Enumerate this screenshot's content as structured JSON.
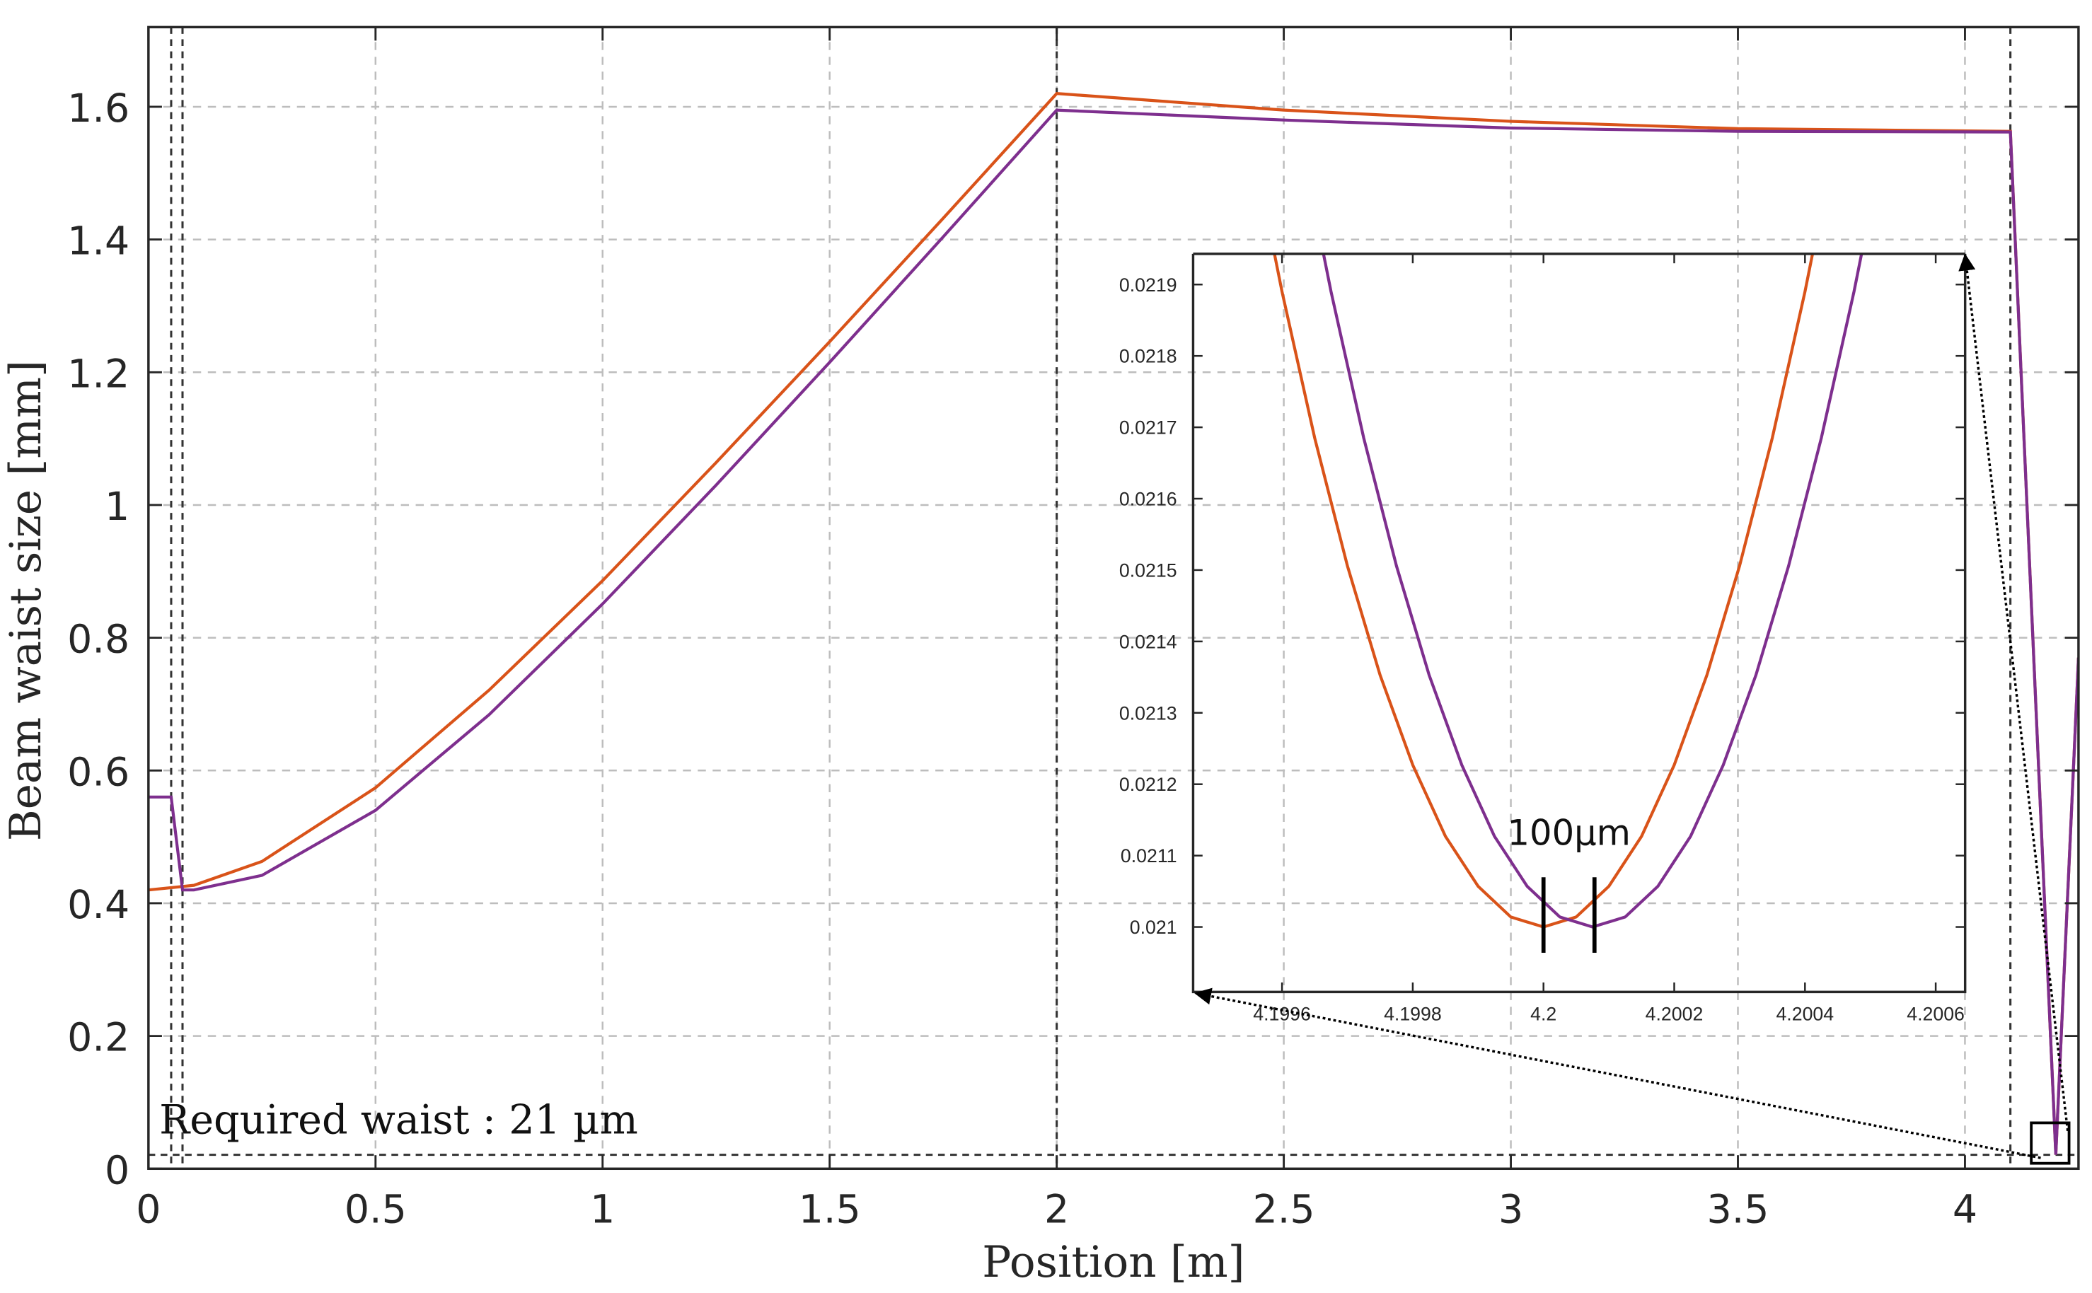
{
  "chart_data": {
    "type": "line",
    "xlabel": "Position [m]",
    "ylabel": "Beam waist size [mm]",
    "xlim": [
      0,
      4.25
    ],
    "ylim": [
      0,
      1.72
    ],
    "x_ticks": [
      "0",
      "0.5",
      "1",
      "1.5",
      "2",
      "2.5",
      "3",
      "3.5",
      "4"
    ],
    "y_ticks": [
      "0",
      "0.2",
      "0.4",
      "0.6",
      "0.8",
      "1",
      "1.2",
      "1.4",
      "1.6"
    ],
    "grid": true,
    "colors": {
      "orange": "#d95319",
      "purple": "#7e2f8e",
      "grid": "#bdbdbd",
      "reference": "#333333"
    },
    "series": [
      {
        "color": "#d95319",
        "x": [
          0,
          0.1,
          0.25,
          0.5,
          0.75,
          1,
          1.25,
          1.5,
          1.75,
          2,
          2.5,
          3,
          3.5,
          4.1,
          4.2,
          4.25
        ],
        "y": [
          0.42,
          0.427,
          0.463,
          0.574,
          0.721,
          0.886,
          1.064,
          1.246,
          1.432,
          1.62,
          1.595,
          1.578,
          1.567,
          1.563,
          0.021,
          0.77
        ]
      },
      {
        "color": "#7e2f8e",
        "x": [
          0,
          0.05,
          0.075,
          0.1,
          0.25,
          0.5,
          0.75,
          1,
          1.25,
          1.5,
          1.75,
          2,
          2.5,
          3,
          3.5,
          4.1,
          4.2,
          4.25
        ],
        "y": [
          0.56,
          0.56,
          0.42,
          0.42,
          0.442,
          0.54,
          0.684,
          0.851,
          1.03,
          1.215,
          1.404,
          1.595,
          1.58,
          1.568,
          1.563,
          1.562,
          0.021,
          0.77
        ]
      }
    ],
    "vertical_reference_lines": [
      0.05,
      0.075,
      2,
      4.1
    ],
    "horizontal_reference_line": 0.021,
    "annotation": "Required waist :  21 µm",
    "inset": {
      "xlim": [
        4.199464,
        4.200645
      ],
      "ylim": [
        0.020909,
        0.021943
      ],
      "x_ticks": [
        4.1996,
        4.1998,
        4.2,
        4.2002,
        4.2004,
        4.2006
      ],
      "x_tick_labels": [
        "4.1996",
        "4.1998",
        "4.2",
        "4.2002",
        "4.2004",
        "4.2006"
      ],
      "y_ticks": [
        0.021,
        0.0211,
        0.0212,
        0.0213,
        0.0214,
        0.0215,
        0.0216,
        0.0217,
        0.0218,
        0.0219
      ],
      "y_tick_labels": [
        "0.021",
        "0.0211",
        "0.0212",
        "0.0213",
        "0.0214",
        "0.0215",
        "0.0216",
        "0.0217",
        "0.0218",
        "0.0219"
      ],
      "series": [
        {
          "color": "#d95319",
          "x": [
            4.19955,
            4.1996,
            4.19965,
            4.1997,
            4.19975,
            4.1998,
            4.19985,
            4.1999,
            4.19995,
            4.2,
            4.20005,
            4.2001,
            4.20015,
            4.2002,
            4.20025,
            4.2003,
            4.20035,
            4.2004,
            4.20045
          ],
          "y": [
            0.022119,
            0.02189,
            0.021685,
            0.021506,
            0.021353,
            0.021227,
            0.021127,
            0.021057,
            0.021014,
            0.021,
            0.021014,
            0.021057,
            0.021127,
            0.021227,
            0.021353,
            0.021506,
            0.021685,
            0.02189,
            0.022119
          ]
        },
        {
          "color": "#7e2f8e",
          "x": [
            4.199625,
            4.199675,
            4.199725,
            4.199775,
            4.199825,
            4.199875,
            4.199925,
            4.199975,
            4.200025,
            4.200075,
            4.200125,
            4.200175,
            4.200225,
            4.200275,
            4.200325,
            4.200375,
            4.200425,
            4.200475,
            4.200525
          ],
          "y": [
            0.022119,
            0.02189,
            0.021685,
            0.021506,
            0.021353,
            0.021227,
            0.021127,
            0.021057,
            0.021014,
            0.021,
            0.021014,
            0.021057,
            0.021127,
            0.021227,
            0.021353,
            0.021506,
            0.021685,
            0.02189,
            0.022119
          ]
        }
      ],
      "scale_marks_x": [
        4.2,
        4.200078
      ],
      "scale_label": "100µm"
    }
  }
}
